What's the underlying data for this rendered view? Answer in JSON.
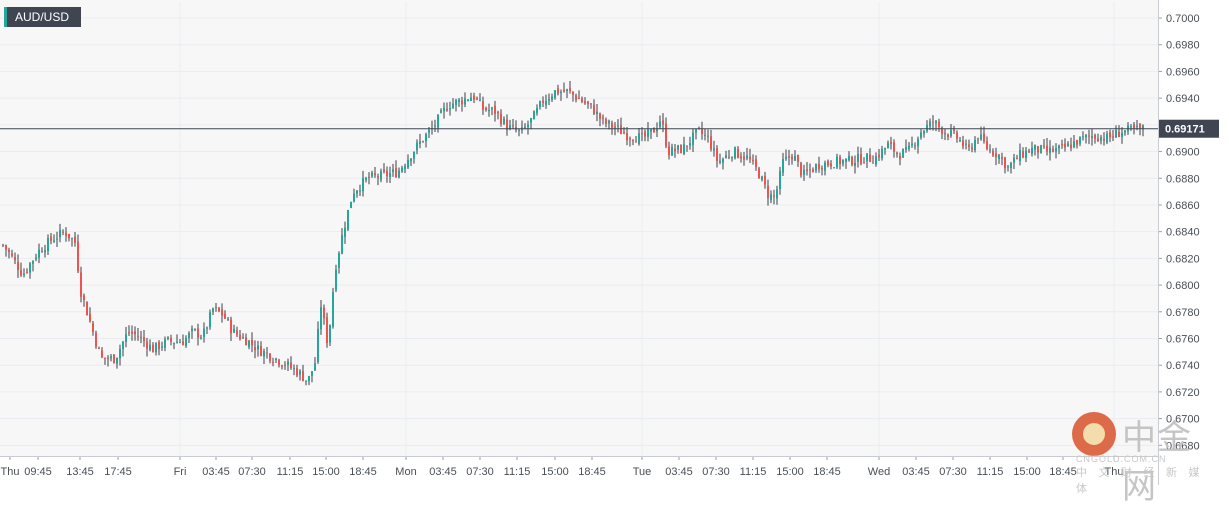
{
  "symbol": "AUD/USD",
  "watermark": {
    "brand": "中金网",
    "url": "CNGOLD.COM.CN",
    "tagline": "中 文 财 经 新 媒 体"
  },
  "colors": {
    "up": "#26a69a",
    "down": "#ef5350",
    "last_price_line": "#3f4652",
    "grid": "#e9ecf1",
    "background": "#f7f7f7"
  },
  "chart_data": {
    "type": "candlestick",
    "title": "AUD/USD",
    "xlabel": "",
    "ylabel": "",
    "ylim": [
      0.6672,
      0.7012
    ],
    "y_ticks": [
      "0.6680",
      "0.6700",
      "0.6720",
      "0.6740",
      "0.6760",
      "0.6780",
      "0.6800",
      "0.6820",
      "0.6840",
      "0.6860",
      "0.6880",
      "0.6900",
      "0.6920",
      "0.6940",
      "0.6960",
      "0.6980",
      "0.7000"
    ],
    "x_ticks": [
      "Thu",
      "09:45",
      "13:45",
      "17:45",
      "Fri",
      "03:45",
      "07:30",
      "11:15",
      "15:00",
      "18:45",
      "Mon",
      "03:45",
      "07:30",
      "11:15",
      "15:00",
      "18:45",
      "Tue",
      "03:45",
      "07:30",
      "11:15",
      "15:00",
      "18:45",
      "Wed",
      "03:45",
      "07:30",
      "11:15",
      "15:00",
      "18:45",
      "Thu"
    ],
    "grid": true,
    "last_price": "0.69171",
    "close_path": [
      [
        0,
        0.683
      ],
      [
        8,
        0.6822
      ],
      [
        20,
        0.6808
      ],
      [
        35,
        0.6825
      ],
      [
        50,
        0.6835
      ],
      [
        62,
        0.684
      ],
      [
        72,
        0.6832
      ],
      [
        78,
        0.6795
      ],
      [
        88,
        0.677
      ],
      [
        98,
        0.6745
      ],
      [
        112,
        0.6745
      ],
      [
        125,
        0.6765
      ],
      [
        135,
        0.6762
      ],
      [
        150,
        0.6752
      ],
      [
        165,
        0.6758
      ],
      [
        180,
        0.6758
      ],
      [
        190,
        0.6765
      ],
      [
        200,
        0.6762
      ],
      [
        210,
        0.6782
      ],
      [
        220,
        0.6778
      ],
      [
        230,
        0.6765
      ],
      [
        245,
        0.6758
      ],
      [
        255,
        0.6752
      ],
      [
        265,
        0.6748
      ],
      [
        280,
        0.6742
      ],
      [
        295,
        0.6735
      ],
      [
        305,
        0.6728
      ],
      [
        312,
        0.6742
      ],
      [
        318,
        0.6785
      ],
      [
        325,
        0.6755
      ],
      [
        332,
        0.6812
      ],
      [
        340,
        0.684
      ],
      [
        350,
        0.687
      ],
      [
        365,
        0.688
      ],
      [
        380,
        0.6882
      ],
      [
        395,
        0.6885
      ],
      [
        405,
        0.6895
      ],
      [
        415,
        0.6905
      ],
      [
        430,
        0.6918
      ],
      [
        445,
        0.6935
      ],
      [
        458,
        0.6938
      ],
      [
        470,
        0.6942
      ],
      [
        480,
        0.6932
      ],
      [
        492,
        0.693
      ],
      [
        505,
        0.6918
      ],
      [
        518,
        0.6914
      ],
      [
        530,
        0.6925
      ],
      [
        540,
        0.6938
      ],
      [
        552,
        0.6945
      ],
      [
        565,
        0.6945
      ],
      [
        575,
        0.694
      ],
      [
        590,
        0.6932
      ],
      [
        600,
        0.6922
      ],
      [
        612,
        0.6918
      ],
      [
        625,
        0.6912
      ],
      [
        640,
        0.691
      ],
      [
        650,
        0.6915
      ],
      [
        658,
        0.6925
      ],
      [
        665,
        0.69
      ],
      [
        680,
        0.6902
      ],
      [
        695,
        0.6915
      ],
      [
        705,
        0.691
      ],
      [
        715,
        0.6892
      ],
      [
        730,
        0.69
      ],
      [
        745,
        0.6895
      ],
      [
        755,
        0.6885
      ],
      [
        765,
        0.6868
      ],
      [
        772,
        0.6865
      ],
      [
        780,
        0.6892
      ],
      [
        790,
        0.6898
      ],
      [
        800,
        0.6882
      ],
      [
        815,
        0.689
      ],
      [
        830,
        0.6892
      ],
      [
        845,
        0.6893
      ],
      [
        860,
        0.6895
      ],
      [
        872,
        0.6895
      ],
      [
        885,
        0.6905
      ],
      [
        895,
        0.6898
      ],
      [
        905,
        0.69
      ],
      [
        918,
        0.6915
      ],
      [
        930,
        0.6922
      ],
      [
        942,
        0.6915
      ],
      [
        955,
        0.691
      ],
      [
        965,
        0.69
      ],
      [
        975,
        0.6912
      ],
      [
        985,
        0.6902
      ],
      [
        995,
        0.6898
      ],
      [
        1005,
        0.6888
      ],
      [
        1018,
        0.6898
      ],
      [
        1030,
        0.6902
      ],
      [
        1045,
        0.69
      ],
      [
        1060,
        0.6902
      ],
      [
        1075,
        0.6908
      ],
      [
        1090,
        0.6912
      ],
      [
        1105,
        0.691
      ],
      [
        1118,
        0.6915
      ],
      [
        1130,
        0.6916
      ],
      [
        1142,
        0.6917
      ]
    ]
  }
}
